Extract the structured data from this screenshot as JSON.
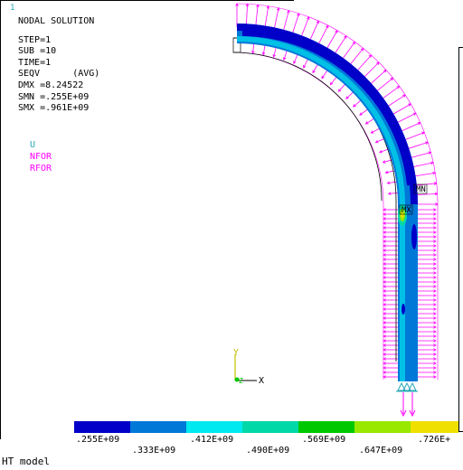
{
  "corner_mark": "1",
  "info": {
    "title": "NODAL SOLUTION",
    "lines": [
      "STEP=1",
      "SUB =10",
      "TIME=1",
      "SEQV      (AVG)",
      "DMX =8.24522",
      "SMN =.255E+09",
      "SMX =.961E+09"
    ]
  },
  "legend": {
    "u": "U",
    "nfor": "NFOR",
    "rfor": "RFOR",
    "u_color": "#2aa7b7",
    "force_color": "#ff00ff"
  },
  "markers": {
    "min": "MN",
    "max": "MX"
  },
  "triad": {
    "y": "Y",
    "z": "Z",
    "x": "X"
  },
  "colorbar": {
    "colors": [
      "#0000c8",
      "#0078d8",
      "#00e8f0",
      "#00d8a8",
      "#00c800",
      "#98e800",
      "#f0e000"
    ],
    "upper_labels": [
      ".255E+09",
      ".412E+09",
      ".569E+09",
      ".726E+"
    ],
    "lower_labels": [
      ".333E+09",
      ".490E+09",
      ".647E+09"
    ]
  },
  "footer": "HT model"
}
